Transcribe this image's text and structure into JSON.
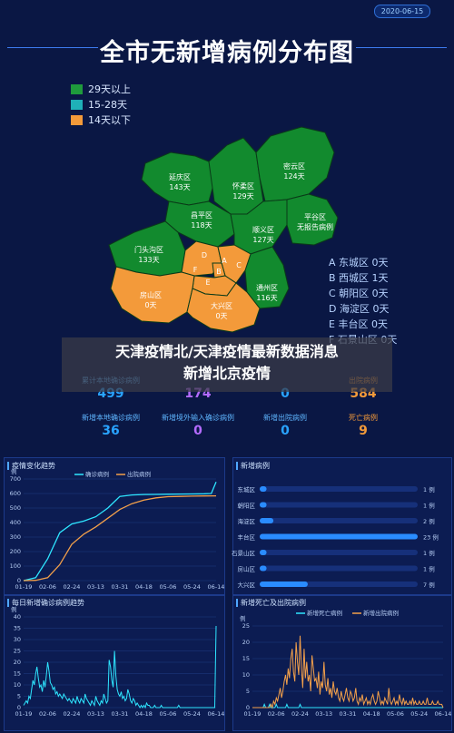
{
  "header": {
    "date": "2020-06-15",
    "title": "全市无新增病例分布图"
  },
  "map_legend": [
    {
      "label": "29天以上",
      "color": "#1f9a3c"
    },
    {
      "label": "15-28天",
      "color": "#1fb0b8"
    },
    {
      "label": "14天以下",
      "color": "#f39a3a"
    }
  ],
  "map_districts": [
    {
      "name": "延庆区",
      "days": "143天"
    },
    {
      "name": "怀柔区",
      "days": "129天"
    },
    {
      "name": "密云区",
      "days": "124天"
    },
    {
      "name": "昌平区",
      "days": "118天"
    },
    {
      "name": "顺义区",
      "days": "127天"
    },
    {
      "name": "平谷区",
      "days": "无报告病例"
    },
    {
      "name": "门头沟区",
      "days": "133天"
    },
    {
      "name": "通州区",
      "days": "116天"
    },
    {
      "name": "房山区",
      "days": "0天"
    },
    {
      "name": "大兴区",
      "days": "0天"
    }
  ],
  "map_letters": [
    "D",
    "A",
    "B",
    "C",
    "F",
    "E"
  ],
  "map_district_list": [
    "A 东城区 0天",
    "B 西城区 1天",
    "C 朝阳区 0天",
    "D 海淀区 0天",
    "E 丰台区 0天",
    "F 石景山区 0天"
  ],
  "banner": {
    "line1": "天津疫情北/天津疫情最新数据消息",
    "line2": "新增北京疫情"
  },
  "stats": [
    {
      "label": "累计本地确诊病例",
      "value": "499",
      "color": "#29a3ff"
    },
    {
      "label": "",
      "value": "174",
      "color": "#b36bff"
    },
    {
      "label": "",
      "value": "0",
      "color": "#29a3ff"
    },
    {
      "label": "出院病例",
      "value": "584",
      "color": "#f39a3a"
    },
    {
      "label": "新增本地确诊病例",
      "value": "36",
      "color": "#29a3ff"
    },
    {
      "label": "新增境外输入确诊病例",
      "value": "0",
      "color": "#b36bff"
    },
    {
      "label": "新增出院病例",
      "value": "0",
      "color": "#29a3ff"
    },
    {
      "label": "死亡病例",
      "value": "9",
      "color": "#f39a3a"
    }
  ],
  "stat_label_colors": [
    "#5fb6ff",
    "#5fb6ff",
    "#5fb6ff",
    "#f39a3a",
    "#5fb6ff",
    "#5fb6ff",
    "#5fb6ff",
    "#f39a3a"
  ],
  "chart_data": [
    {
      "type": "line",
      "title": "疫情变化趋势",
      "ylabel": "例",
      "ylim": [
        0,
        700
      ],
      "yticks": [
        "0",
        "100",
        "200",
        "300",
        "400",
        "500",
        "600",
        "700"
      ],
      "x_tick_labels": [
        "01-19",
        "02-06",
        "02-24",
        "03-13",
        "03-31",
        "04-18",
        "05-06",
        "05-24",
        "06-14"
      ],
      "series": [
        {
          "name": "确诊病例",
          "color": "#2ee6ff",
          "points": [
            [
              0,
              0
            ],
            [
              0.5,
              20
            ],
            [
              1,
              150
            ],
            [
              1.5,
              330
            ],
            [
              2,
              390
            ],
            [
              2.5,
              410
            ],
            [
              3,
              440
            ],
            [
              3.5,
              500
            ],
            [
              4,
              580
            ],
            [
              4.5,
              590
            ],
            [
              5,
              593
            ],
            [
              5.5,
              594
            ],
            [
              6,
              595
            ],
            [
              6.5,
              596
            ],
            [
              7,
              597
            ],
            [
              7.5,
              598
            ],
            [
              7.8,
              600
            ],
            [
              8,
              680
            ]
          ]
        },
        {
          "name": "出院病例",
          "color": "#f3a04a",
          "points": [
            [
              0,
              0
            ],
            [
              0.5,
              2
            ],
            [
              1,
              20
            ],
            [
              1.5,
              110
            ],
            [
              2,
              250
            ],
            [
              2.5,
              320
            ],
            [
              3,
              370
            ],
            [
              3.5,
              430
            ],
            [
              4,
              490
            ],
            [
              4.5,
              530
            ],
            [
              5,
              555
            ],
            [
              5.5,
              570
            ],
            [
              6,
              578
            ],
            [
              6.5,
              580
            ],
            [
              7,
              582
            ],
            [
              7.5,
              583
            ],
            [
              8,
              584
            ]
          ]
        }
      ]
    },
    {
      "type": "bar",
      "title": "新增病例",
      "categories": [
        "东城区",
        "朝阳区",
        "海淀区",
        "丰台区",
        "石景山区",
        "房山区",
        "大兴区"
      ],
      "values": [
        1,
        1,
        2,
        23,
        1,
        1,
        7
      ],
      "value_labels": [
        "1 例",
        "1 例",
        "2 例",
        "23 例",
        "1 例",
        "1 例",
        "7 例"
      ],
      "xlim": [
        0,
        23
      ]
    },
    {
      "type": "line",
      "title": "每日新增确诊病例趋势",
      "ylabel": "例",
      "ylim": [
        0,
        40
      ],
      "yticks": [
        "0",
        "5",
        "10",
        "15",
        "20",
        "25",
        "30",
        "35",
        "40"
      ],
      "x_tick_labels": [
        "01-19",
        "02-06",
        "02-24",
        "03-13",
        "03-31",
        "04-18",
        "05-06",
        "05-24",
        "06-14"
      ],
      "series": [
        {
          "name": "",
          "color": "#2ee6ff",
          "values": [
            1,
            2,
            3,
            2,
            5,
            4,
            8,
            12,
            10,
            15,
            18,
            13,
            9,
            10,
            7,
            12,
            9,
            14,
            20,
            16,
            11,
            10,
            8,
            9,
            6,
            7,
            5,
            6,
            5,
            4,
            6,
            5,
            4,
            3,
            4,
            3,
            2,
            4,
            3,
            2,
            5,
            3,
            2,
            4,
            3,
            2,
            6,
            4,
            3,
            2,
            1,
            3,
            2,
            1,
            5,
            3,
            2,
            1,
            3,
            2,
            6,
            4,
            2,
            3,
            21,
            18,
            12,
            9,
            25,
            14,
            8,
            6,
            5,
            7,
            4,
            5,
            3,
            4,
            8,
            6,
            3,
            2,
            4,
            3,
            1,
            2,
            1,
            0,
            1,
            0,
            1,
            0,
            2,
            1,
            1,
            0,
            0,
            0,
            1,
            0,
            0,
            0,
            0,
            1,
            0,
            0,
            0,
            0,
            0,
            0,
            0,
            0,
            0,
            0,
            0,
            0,
            1,
            0,
            0,
            0,
            0,
            0,
            0,
            0,
            0,
            0,
            0,
            0,
            0,
            0,
            0,
            0,
            0,
            0,
            0,
            0,
            0,
            0,
            0,
            0,
            0,
            0,
            0,
            0,
            36
          ]
        }
      ]
    },
    {
      "type": "line",
      "title": "新增死亡及出院病例",
      "ylabel": "例",
      "ylim": [
        0,
        25
      ],
      "yticks": [
        "0",
        "5",
        "10",
        "15",
        "20",
        "25"
      ],
      "x_tick_labels": [
        "01-19",
        "02-06",
        "02-24",
        "03-13",
        "03-31",
        "04-18",
        "05-06",
        "05-24",
        "06-14"
      ],
      "series": [
        {
          "name": "新增死亡病例",
          "color": "#2ee6ff",
          "values": [
            0,
            0,
            0,
            0,
            0,
            0,
            0,
            0,
            0,
            1,
            0,
            0,
            0,
            1,
            0,
            0,
            0,
            0,
            1,
            0,
            0,
            0,
            0,
            0,
            0,
            0,
            1,
            0,
            0,
            0,
            0,
            0,
            0,
            0,
            0,
            0,
            1,
            0,
            0,
            0,
            0,
            0,
            0,
            0,
            0,
            0,
            0,
            0,
            0,
            0,
            0,
            0,
            0,
            0,
            0,
            0,
            0,
            0,
            0,
            0,
            0,
            0,
            0,
            0,
            0,
            0,
            0,
            0,
            0,
            0,
            0,
            0,
            0,
            0,
            0,
            0,
            0,
            0,
            0,
            0,
            0,
            0,
            0,
            0,
            0,
            0,
            0,
            0,
            0,
            0,
            0,
            0,
            0,
            0,
            0,
            0,
            0,
            0,
            0,
            0,
            0,
            0,
            0,
            0,
            0,
            0,
            0,
            0,
            0,
            0,
            0,
            0,
            0,
            0,
            0,
            0,
            0,
            0,
            0,
            0,
            0,
            0,
            0,
            0,
            0,
            0,
            0,
            0,
            0,
            0,
            0,
            0,
            0,
            0,
            0,
            0,
            0,
            0,
            0,
            0,
            0,
            0,
            0,
            0,
            0
          ]
        },
        {
          "name": "新增出院病例",
          "color": "#f3a04a",
          "values": [
            0,
            0,
            0,
            0,
            0,
            0,
            0,
            0,
            0,
            0,
            0,
            0,
            0,
            0,
            1,
            0,
            2,
            1,
            3,
            2,
            4,
            6,
            3,
            5,
            8,
            10,
            7,
            12,
            9,
            15,
            18,
            11,
            8,
            20,
            14,
            10,
            22,
            12,
            6,
            18,
            9,
            14,
            8,
            10,
            5,
            16,
            12,
            8,
            9,
            6,
            11,
            4,
            8,
            6,
            14,
            7,
            5,
            9,
            4,
            6,
            3,
            8,
            5,
            4,
            6,
            3,
            2,
            5,
            3,
            2,
            4,
            6,
            3,
            2,
            5,
            4,
            2,
            3,
            6,
            2,
            1,
            3,
            2,
            4,
            1,
            2,
            3,
            1,
            2,
            1,
            3,
            4,
            2,
            1,
            2,
            5,
            3,
            1,
            2,
            1,
            3,
            2,
            1,
            6,
            2,
            1,
            2,
            3,
            1,
            2,
            1,
            4,
            2,
            1,
            3,
            1,
            2,
            1,
            1,
            2,
            1,
            3,
            1,
            2,
            1,
            1,
            2,
            1,
            1,
            2,
            1,
            1,
            3,
            1,
            1,
            1,
            2,
            1,
            1,
            1,
            2,
            1,
            1,
            1,
            0
          ]
        }
      ]
    }
  ]
}
